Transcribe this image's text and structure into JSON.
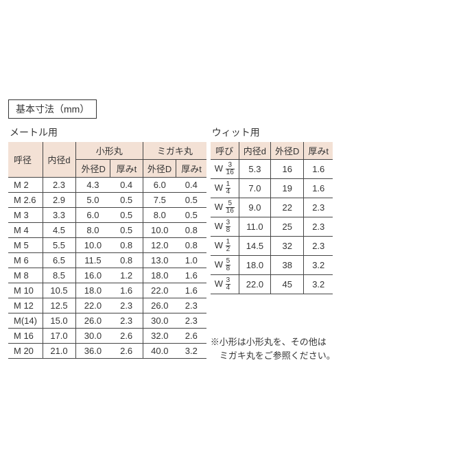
{
  "title": "基本寸法（mm）",
  "metric": {
    "heading": "メートル用",
    "header_top": {
      "call": "呼径",
      "inner": "内径d",
      "small": "小形丸",
      "migaki": "ミガキ丸"
    },
    "header_sub": {
      "od": "外径D",
      "t": "厚みt"
    },
    "rows": [
      {
        "call": "M 2",
        "inner": "2.3",
        "sOD": "4.3",
        "sT": "0.4",
        "mOD": "6.0",
        "mT": "0.4"
      },
      {
        "call": "M 2.6",
        "inner": "2.9",
        "sOD": "5.0",
        "sT": "0.5",
        "mOD": "7.5",
        "mT": "0.5"
      },
      {
        "call": "M 3",
        "inner": "3.3",
        "sOD": "6.0",
        "sT": "0.5",
        "mOD": "8.0",
        "mT": "0.5"
      },
      {
        "call": "M 4",
        "inner": "4.5",
        "sOD": "8.0",
        "sT": "0.5",
        "mOD": "10.0",
        "mT": "0.8"
      },
      {
        "call": "M 5",
        "inner": "5.5",
        "sOD": "10.0",
        "sT": "0.8",
        "mOD": "12.0",
        "mT": "0.8"
      },
      {
        "call": "M 6",
        "inner": "6.5",
        "sOD": "11.5",
        "sT": "0.8",
        "mOD": "13.0",
        "mT": "1.0"
      },
      {
        "call": "M 8",
        "inner": "8.5",
        "sOD": "16.0",
        "sT": "1.2",
        "mOD": "18.0",
        "mT": "1.6"
      },
      {
        "call": "M 10",
        "inner": "10.5",
        "sOD": "18.0",
        "sT": "1.6",
        "mOD": "22.0",
        "mT": "1.6"
      },
      {
        "call": "M 12",
        "inner": "12.5",
        "sOD": "22.0",
        "sT": "2.3",
        "mOD": "26.0",
        "mT": "2.3"
      },
      {
        "call": "M(14)",
        "inner": "15.0",
        "sOD": "26.0",
        "sT": "2.3",
        "mOD": "30.0",
        "mT": "2.3"
      },
      {
        "call": "M 16",
        "inner": "17.0",
        "sOD": "30.0",
        "sT": "2.6",
        "mOD": "32.0",
        "mT": "2.6"
      },
      {
        "call": "M 20",
        "inner": "21.0",
        "sOD": "36.0",
        "sT": "2.6",
        "mOD": "40.0",
        "mT": "3.2"
      }
    ]
  },
  "whit": {
    "heading": "ウィット用",
    "header": {
      "call": "呼び",
      "inner": "内径d",
      "od": "外径D",
      "t": "厚みt"
    },
    "rows": [
      {
        "pre": "W ",
        "fn": "3",
        "fd": "16",
        "inner": "5.3",
        "od": "16",
        "t": "1.6"
      },
      {
        "pre": "W ",
        "fn": "1",
        "fd": "4",
        "inner": "7.0",
        "od": "19",
        "t": "1.6"
      },
      {
        "pre": "W ",
        "fn": "5",
        "fd": "16",
        "inner": "9.0",
        "od": "22",
        "t": "2.3"
      },
      {
        "pre": "W ",
        "fn": "3",
        "fd": "8",
        "inner": "11.0",
        "od": "25",
        "t": "2.3"
      },
      {
        "pre": "W ",
        "fn": "1",
        "fd": "2",
        "inner": "14.5",
        "od": "32",
        "t": "2.3"
      },
      {
        "pre": "W ",
        "fn": "5",
        "fd": "8",
        "inner": "18.0",
        "od": "38",
        "t": "3.2"
      },
      {
        "pre": "W ",
        "fn": "3",
        "fd": "4",
        "inner": "22.0",
        "od": "45",
        "t": "3.2"
      }
    ]
  },
  "note_l1": "※小形は小形丸を、その他は",
  "note_l2": "　ミガキ丸をご参照ください。",
  "colors": {
    "header_bg": "#f3e1d5",
    "border": "#444444",
    "text": "#333333",
    "bg": "#ffffff"
  }
}
